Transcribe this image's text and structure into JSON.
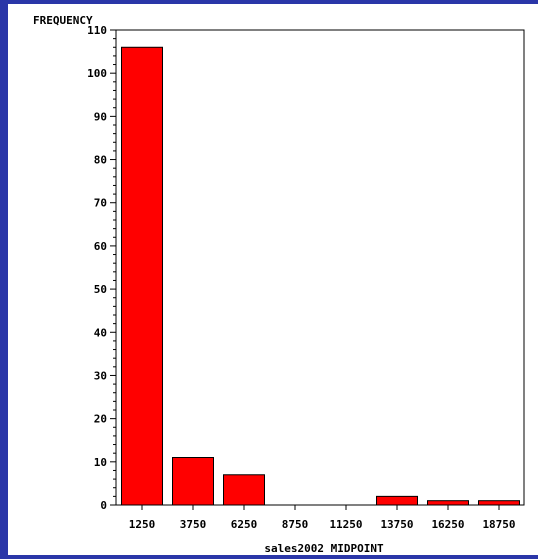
{
  "chart_data": {
    "type": "bar",
    "categories": [
      "1250",
      "3750",
      "6250",
      "8750",
      "11250",
      "13750",
      "16250",
      "18750"
    ],
    "values": [
      106,
      11,
      7,
      0,
      0,
      2,
      1,
      1
    ],
    "title": "",
    "xlabel": "sales2002 MIDPOINT",
    "ylabel": "FREQUENCY",
    "ylim": [
      0,
      110
    ],
    "yticks": [
      0,
      10,
      20,
      30,
      40,
      50,
      60,
      70,
      80,
      90,
      100,
      110
    ],
    "grid": false,
    "bar_color": "#ff0000",
    "border_color": "#2a36a8"
  }
}
